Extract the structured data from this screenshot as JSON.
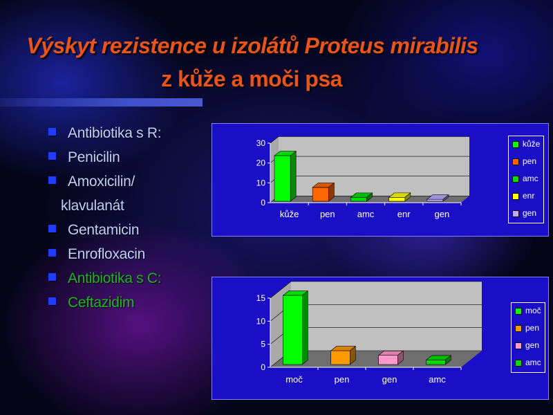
{
  "slide": {
    "title_line1": "Výskyt rezistence u izolátů Proteus mirabilis",
    "title_line2": "z kůže a moči psa"
  },
  "bullets": [
    {
      "text": "Antibiotika s R:",
      "bullet": true,
      "color": "#bfd0ff"
    },
    {
      "text": "Penicilin",
      "bullet": true,
      "color": "#bfd0ff"
    },
    {
      "text": "Amoxicilin/",
      "bullet": true,
      "color": "#bfd0ff"
    },
    {
      "text": "klavulanát",
      "bullet": false,
      "color": "#bfd0ff"
    },
    {
      "text": "Gentamicin",
      "bullet": true,
      "color": "#bfd0ff"
    },
    {
      "text": "Enrofloxacin",
      "bullet": true,
      "color": "#bfd0ff"
    },
    {
      "text": "Antibiotika s C:",
      "bullet": true,
      "color": "#1fb51f"
    },
    {
      "text": "Ceftazidim",
      "bullet": true,
      "color": "#1fb51f"
    }
  ],
  "chart_data": [
    {
      "type": "bar",
      "categories": [
        "kůže",
        "pen",
        "amc",
        "enr",
        "gen"
      ],
      "values": [
        23,
        7,
        2,
        2,
        1
      ],
      "colors": [
        "#00ff00",
        "#ff6600",
        "#00dd00",
        "#ffff00",
        "#c0a8ff"
      ],
      "legend": [
        "kůže",
        "pen",
        "amc",
        "enr",
        "gen"
      ],
      "yticks": [
        "0",
        "10",
        "20",
        "30"
      ],
      "ylim": [
        0,
        30
      ],
      "legend_position": "right",
      "grid": true
    },
    {
      "type": "bar",
      "categories": [
        "moč",
        "pen",
        "gen",
        "amc"
      ],
      "values": [
        15,
        3,
        2,
        1
      ],
      "colors": [
        "#00ff00",
        "#ff9900",
        "#ff99cc",
        "#00dd00"
      ],
      "legend": [
        "moč",
        "pen",
        "gen",
        "amc"
      ],
      "yticks": [
        "0",
        "5",
        "10",
        "15"
      ],
      "ylim": [
        0,
        15
      ],
      "legend_position": "right",
      "grid": true
    }
  ]
}
